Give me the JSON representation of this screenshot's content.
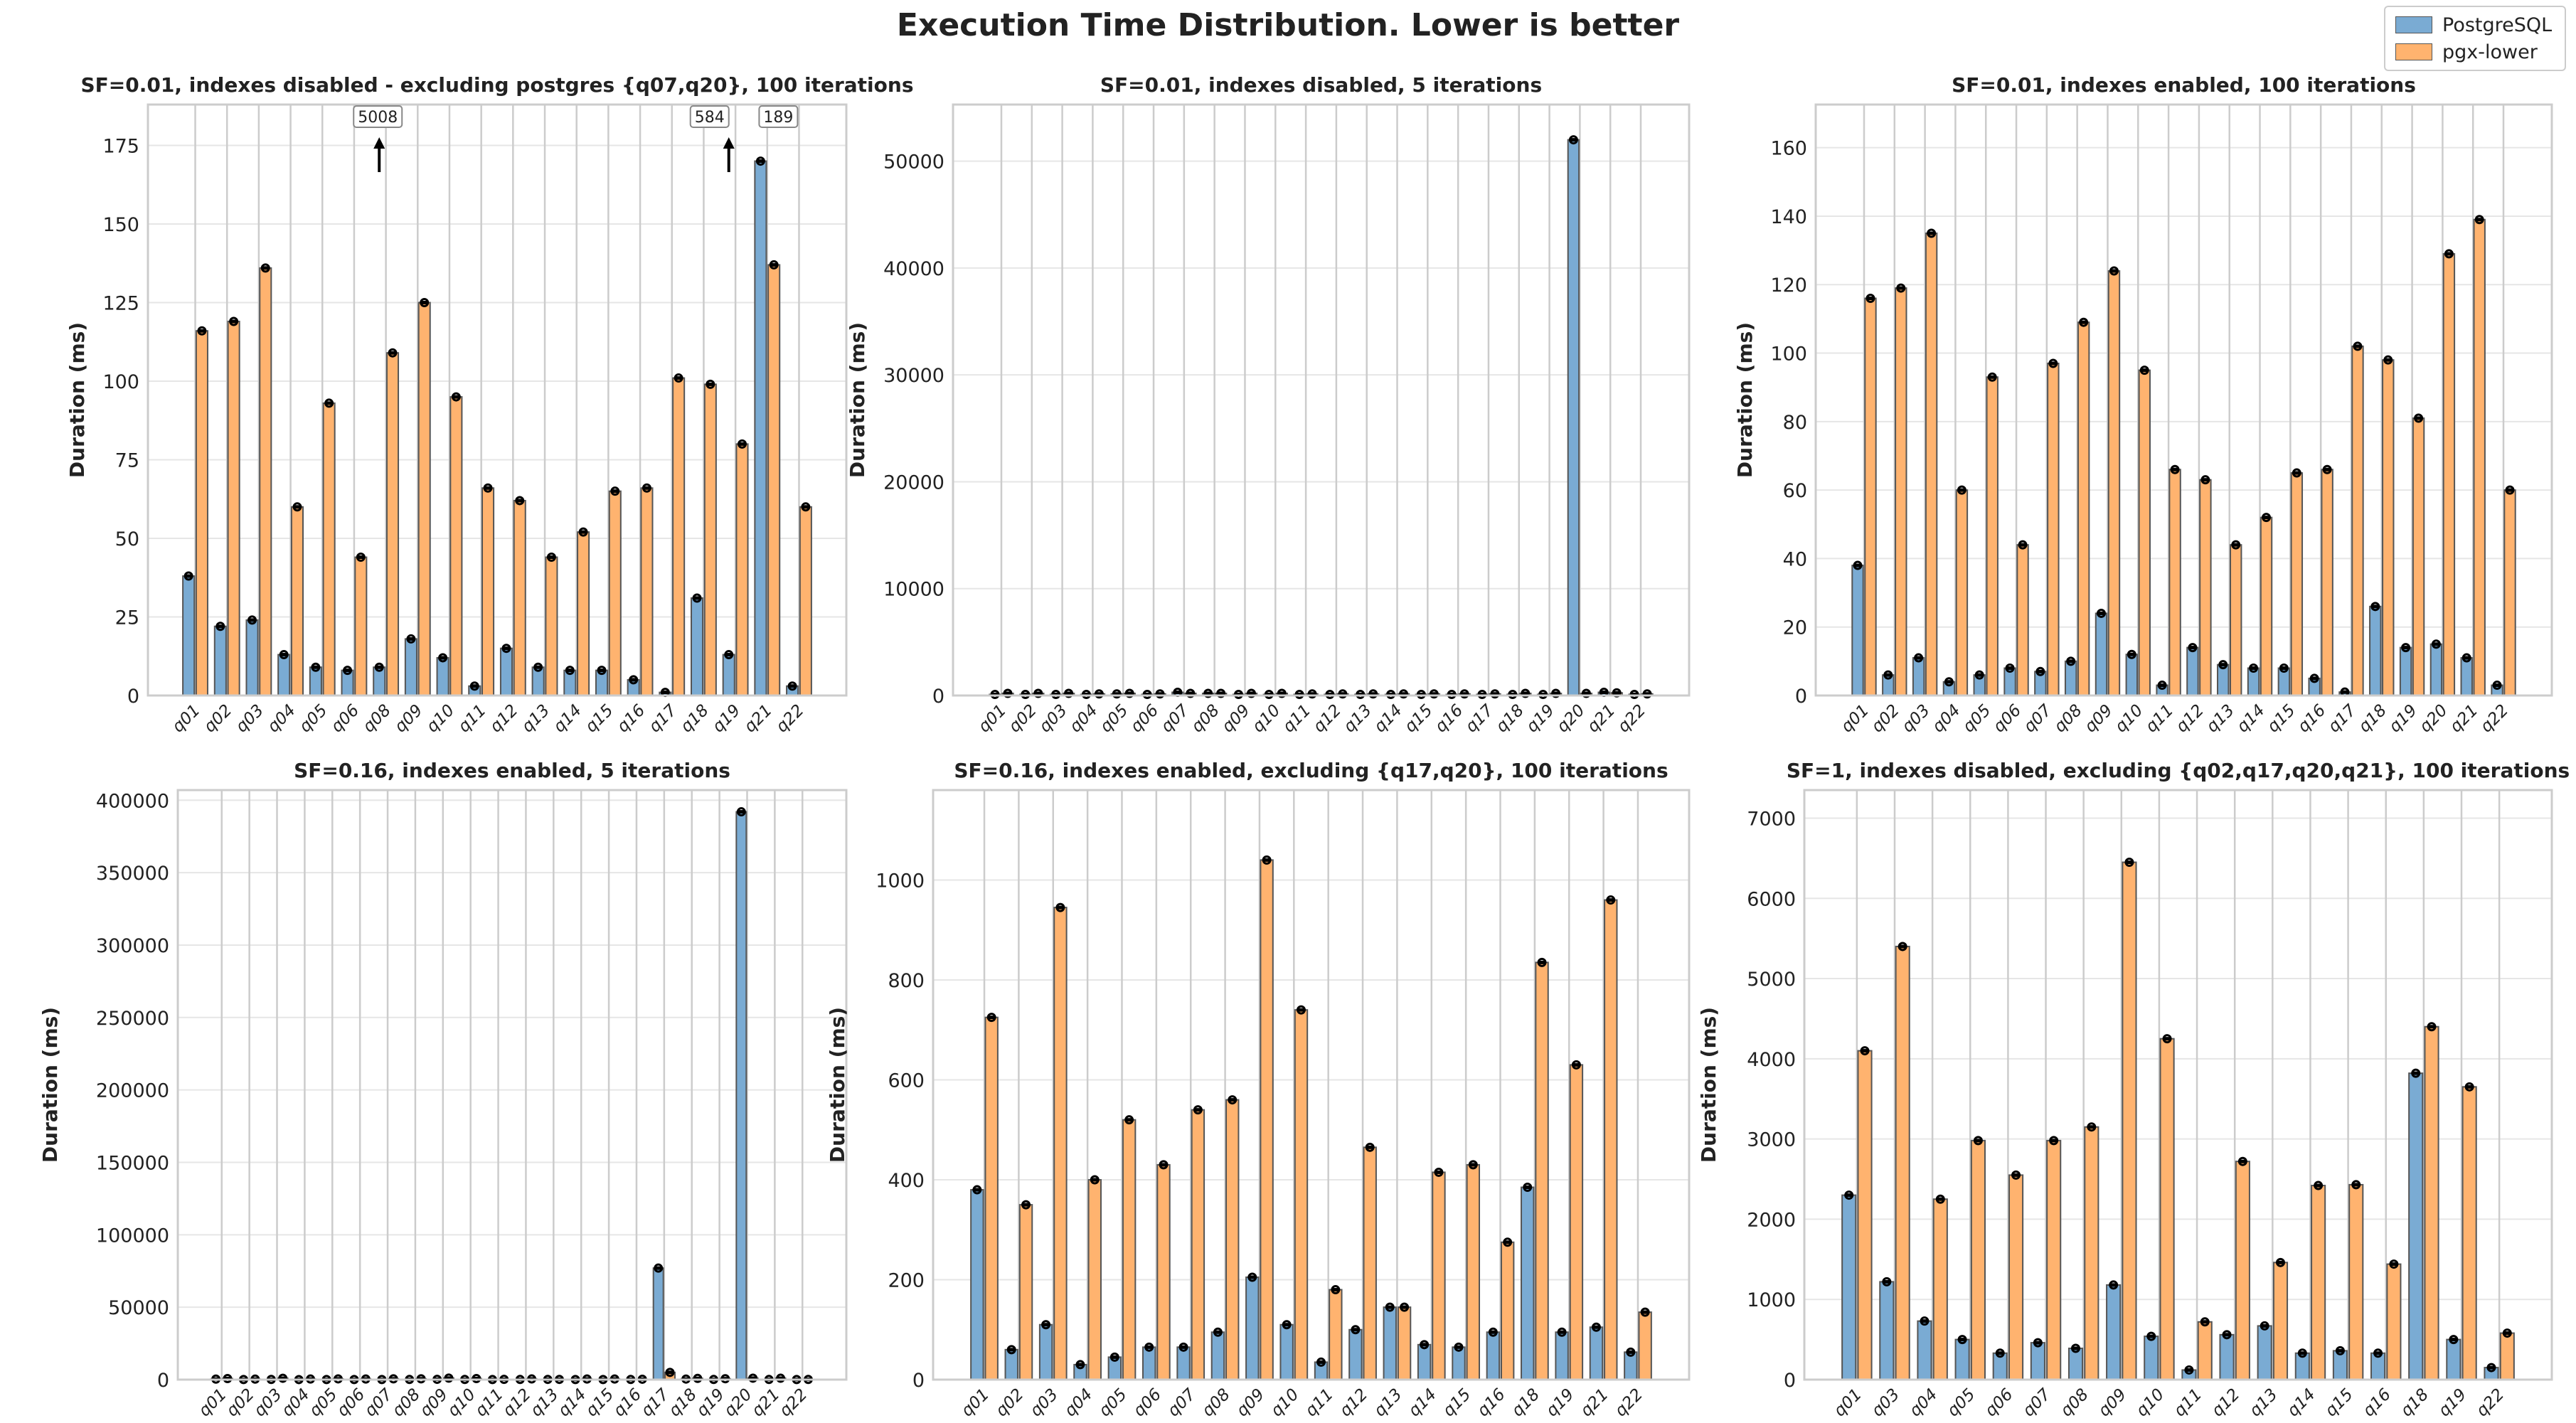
{
  "title": "Execution Time Distribution. Lower is better",
  "legend": {
    "placement": "top-right",
    "items": [
      {
        "label": "PostgreSQL",
        "color": "#7aabd3"
      },
      {
        "label": "pgx-lower",
        "color": "#ffb36f"
      }
    ]
  },
  "colors": {
    "postgres": "#7aabd3",
    "pgx": "#ffb36f",
    "edge": "#555555",
    "grid": "#e6e6e6",
    "vgrid": "#cccccc"
  },
  "chart_data": [
    {
      "type": "bar",
      "title": "SF=0.01, indexes disabled - excluding postgres {q07,q20}, 100 iterations",
      "ylabel": "Duration (ms)",
      "ylim": [
        0,
        188
      ],
      "yticks": [
        0,
        25,
        50,
        75,
        100,
        125,
        150,
        175
      ],
      "categories": [
        "q01",
        "q02",
        "q03",
        "q04",
        "q05",
        "q06",
        "q08",
        "q09",
        "q10",
        "q11",
        "q12",
        "q13",
        "q14",
        "q15",
        "q16",
        "q17",
        "q18",
        "q19",
        "q21",
        "q22"
      ],
      "series": [
        {
          "name": "PostgreSQL",
          "values": [
            38,
            22,
            24,
            13,
            9,
            8,
            9,
            18,
            12,
            3,
            15,
            9,
            8,
            8,
            5,
            1,
            31,
            13,
            170,
            3
          ]
        },
        {
          "name": "pgx-lower",
          "values": [
            116,
            119,
            136,
            60,
            93,
            44,
            109,
            125,
            95,
            66,
            62,
            44,
            52,
            65,
            66,
            101,
            99,
            80,
            137,
            60
          ]
        }
      ],
      "annotations": [
        {
          "text": "5008",
          "category": "q08",
          "series": "PostgreSQL"
        },
        {
          "text": "584",
          "category": "q19",
          "series": "PostgreSQL"
        },
        {
          "text": "189",
          "category": "q21",
          "series": "PostgreSQL"
        }
      ]
    },
    {
      "type": "bar",
      "title": "SF=0.01, indexes disabled, 5 iterations",
      "ylabel": "Duration (ms)",
      "ylim": [
        0,
        55300
      ],
      "yticks": [
        0,
        10000,
        20000,
        30000,
        40000,
        50000
      ],
      "categories": [
        "q01",
        "q02",
        "q03",
        "q04",
        "q05",
        "q06",
        "q07",
        "q08",
        "q09",
        "q10",
        "q11",
        "q12",
        "q13",
        "q14",
        "q15",
        "q16",
        "q17",
        "q18",
        "q19",
        "q20",
        "q21",
        "q22"
      ],
      "series": [
        {
          "name": "PostgreSQL",
          "values": [
            100,
            100,
            100,
            100,
            150,
            100,
            300,
            200,
            100,
            100,
            100,
            100,
            100,
            100,
            100,
            100,
            100,
            100,
            100,
            52000,
            300,
            100
          ]
        },
        {
          "name": "pgx-lower",
          "values": [
            200,
            200,
            200,
            150,
            200,
            150,
            200,
            200,
            200,
            200,
            150,
            150,
            150,
            150,
            150,
            150,
            150,
            200,
            200,
            200,
            250,
            150
          ]
        }
      ]
    },
    {
      "type": "bar",
      "title": "SF=0.01, indexes enabled, 100 iterations",
      "ylabel": "Duration (ms)",
      "ylim": [
        0,
        172.6
      ],
      "yticks": [
        0,
        20,
        40,
        60,
        80,
        100,
        120,
        140,
        160
      ],
      "categories": [
        "q01",
        "q02",
        "q03",
        "q04",
        "q05",
        "q06",
        "q07",
        "q08",
        "q09",
        "q10",
        "q11",
        "q12",
        "q13",
        "q14",
        "q15",
        "q16",
        "q17",
        "q18",
        "q19",
        "q20",
        "q21",
        "q22"
      ],
      "series": [
        {
          "name": "PostgreSQL",
          "values": [
            38,
            6,
            11,
            4,
            6,
            8,
            7,
            10,
            24,
            12,
            3,
            14,
            9,
            8,
            8,
            5,
            1,
            26,
            14,
            15,
            11,
            3
          ]
        },
        {
          "name": "pgx-lower",
          "values": [
            116,
            119,
            135,
            60,
            93,
            44,
            97,
            109,
            124,
            95,
            66,
            63,
            44,
            52,
            65,
            66,
            102,
            98,
            81,
            129,
            139,
            60
          ]
        }
      ]
    },
    {
      "type": "bar",
      "title": "SF=0.16, indexes enabled, 5 iterations",
      "ylabel": "Duration (ms)",
      "ylim": [
        0,
        407000
      ],
      "yticks": [
        0,
        50000,
        100000,
        150000,
        200000,
        250000,
        300000,
        350000,
        400000
      ],
      "categories": [
        "q01",
        "q02",
        "q03",
        "q04",
        "q05",
        "q06",
        "q07",
        "q08",
        "q09",
        "q10",
        "q11",
        "q12",
        "q13",
        "q14",
        "q15",
        "q16",
        "q17",
        "q18",
        "q19",
        "q20",
        "q21",
        "q22"
      ],
      "series": [
        {
          "name": "PostgreSQL",
          "values": [
            380,
            60,
            110,
            30,
            45,
            65,
            65,
            95,
            205,
            110,
            35,
            100,
            145,
            70,
            65,
            95,
            77000,
            385,
            95,
            392000,
            105,
            55
          ]
        },
        {
          "name": "pgx-lower",
          "values": [
            725,
            350,
            945,
            400,
            520,
            430,
            540,
            560,
            1040,
            740,
            180,
            465,
            145,
            415,
            430,
            275,
            5000,
            835,
            630,
            1000,
            960,
            135
          ]
        }
      ]
    },
    {
      "type": "bar",
      "title": "SF=0.16, indexes enabled, excluding {q17,q20}, 100 iterations",
      "ylabel": "Duration (ms)",
      "ylim": [
        0,
        1180
      ],
      "yticks": [
        0,
        200,
        400,
        600,
        800,
        1000
      ],
      "categories": [
        "q01",
        "q02",
        "q03",
        "q04",
        "q05",
        "q06",
        "q07",
        "q08",
        "q09",
        "q10",
        "q11",
        "q12",
        "q13",
        "q14",
        "q15",
        "q16",
        "q18",
        "q19",
        "q21",
        "q22"
      ],
      "series": [
        {
          "name": "PostgreSQL",
          "values": [
            380,
            60,
            110,
            30,
            45,
            65,
            65,
            95,
            205,
            110,
            35,
            100,
            145,
            70,
            65,
            95,
            385,
            95,
            105,
            55
          ]
        },
        {
          "name": "pgx-lower",
          "values": [
            725,
            350,
            945,
            400,
            520,
            430,
            540,
            560,
            1040,
            740,
            180,
            465,
            145,
            415,
            430,
            275,
            835,
            630,
            960,
            135
          ]
        }
      ]
    },
    {
      "type": "bar",
      "title": "SF=1, indexes disabled, excluding {q02,q17,q20,q21}, 100 iterations",
      "ylabel": "Duration (ms)",
      "ylim": [
        0,
        7350
      ],
      "yticks": [
        0,
        1000,
        2000,
        3000,
        4000,
        5000,
        6000,
        7000
      ],
      "categories": [
        "q01",
        "q03",
        "q04",
        "q05",
        "q06",
        "q07",
        "q08",
        "q09",
        "q10",
        "q11",
        "q12",
        "q13",
        "q14",
        "q15",
        "q16",
        "q18",
        "q19",
        "q22"
      ],
      "series": [
        {
          "name": "PostgreSQL",
          "values": [
            2300,
            1220,
            730,
            500,
            330,
            460,
            390,
            1180,
            540,
            120,
            560,
            670,
            330,
            360,
            330,
            3820,
            500,
            150
          ]
        },
        {
          "name": "pgx-lower",
          "values": [
            4100,
            5400,
            2250,
            2980,
            2550,
            2980,
            3150,
            6450,
            4250,
            720,
            2720,
            1460,
            2420,
            2430,
            1440,
            4400,
            3650,
            580
          ]
        }
      ]
    }
  ]
}
